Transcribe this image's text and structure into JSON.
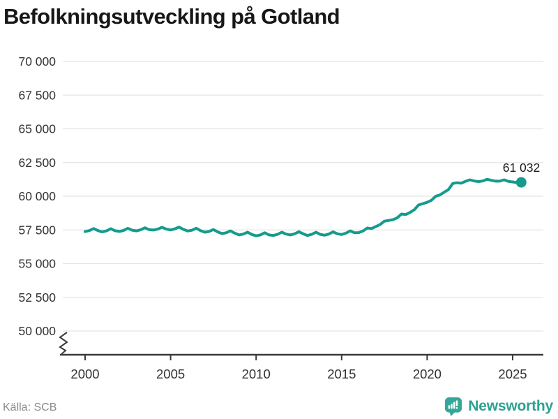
{
  "chart_data": {
    "type": "line",
    "title": "Befolkningsutveckling på Gotland",
    "xlabel": "",
    "ylabel": "",
    "ylim": [
      50000,
      70000
    ],
    "axis_break": true,
    "grid": "horizontal",
    "legend": "none",
    "line_color": "#149b8d",
    "grid_color": "#e4e4e4",
    "axis_color": "#3a3a3a",
    "tick_label_color": "#333333",
    "end_label": "61 032",
    "end_value": 61032,
    "yticks": [
      70000,
      67500,
      65000,
      62500,
      60000,
      57500,
      55000,
      52500,
      50000
    ],
    "ytick_labels": [
      "70 000",
      "67 500",
      "65 000",
      "62 500",
      "60 000",
      "57 500",
      "55 000",
      "52 500",
      "50 000"
    ],
    "xticks": [
      2000,
      2005,
      2010,
      2015,
      2020,
      2025
    ],
    "xtick_labels": [
      "2000",
      "2005",
      "2010",
      "2015",
      "2020",
      "2025"
    ],
    "x": [
      2000,
      2000.25,
      2000.5,
      2000.75,
      2001,
      2001.25,
      2001.5,
      2001.75,
      2002,
      2002.25,
      2002.5,
      2002.75,
      2003,
      2003.25,
      2003.5,
      2003.75,
      2004,
      2004.25,
      2004.5,
      2004.75,
      2005,
      2005.25,
      2005.5,
      2005.75,
      2006,
      2006.25,
      2006.5,
      2006.75,
      2007,
      2007.25,
      2007.5,
      2007.75,
      2008,
      2008.25,
      2008.5,
      2008.75,
      2009,
      2009.25,
      2009.5,
      2009.75,
      2010,
      2010.25,
      2010.5,
      2010.75,
      2011,
      2011.25,
      2011.5,
      2011.75,
      2012,
      2012.25,
      2012.5,
      2012.75,
      2013,
      2013.25,
      2013.5,
      2013.75,
      2014,
      2014.25,
      2014.5,
      2014.75,
      2015,
      2015.25,
      2015.5,
      2015.75,
      2016,
      2016.25,
      2016.5,
      2016.75,
      2017,
      2017.25,
      2017.5,
      2017.75,
      2018,
      2018.25,
      2018.5,
      2018.75,
      2019,
      2019.25,
      2019.5,
      2019.75,
      2020,
      2020.25,
      2020.5,
      2020.75,
      2021,
      2021.25,
      2021.5,
      2021.75,
      2022,
      2022.25,
      2022.5,
      2022.75,
      2023,
      2023.25,
      2023.5,
      2023.75,
      2024,
      2024.25,
      2024.5,
      2024.75,
      2025,
      2025.25,
      2025.5
    ],
    "values": [
      57380,
      57450,
      57600,
      57450,
      57350,
      57430,
      57590,
      57440,
      57390,
      57460,
      57620,
      57480,
      57430,
      57510,
      57660,
      57520,
      57490,
      57560,
      57700,
      57560,
      57500,
      57580,
      57710,
      57540,
      57420,
      57480,
      57620,
      57450,
      57330,
      57390,
      57530,
      57360,
      57230,
      57290,
      57430,
      57260,
      57130,
      57190,
      57330,
      57160,
      57060,
      57130,
      57290,
      57130,
      57090,
      57170,
      57330,
      57190,
      57130,
      57210,
      57370,
      57210,
      57090,
      57170,
      57330,
      57170,
      57110,
      57190,
      57360,
      57210,
      57160,
      57260,
      57430,
      57290,
      57300,
      57420,
      57640,
      57600,
      57750,
      57900,
      58150,
      58200,
      58260,
      58400,
      58680,
      58640,
      58800,
      59000,
      59350,
      59450,
      59550,
      59700,
      60000,
      60100,
      60300,
      60500,
      60950,
      61000,
      60970,
      61110,
      61220,
      61130,
      61090,
      61130,
      61260,
      61180,
      61120,
      61120,
      61220,
      61100,
      61060,
      61009,
      61032
    ]
  },
  "footer": {
    "source": "Källa: SCB",
    "brand": "Newsworthy",
    "brand_color": "#2da193",
    "logo_icon": "bar-chart-speech-bubble"
  }
}
